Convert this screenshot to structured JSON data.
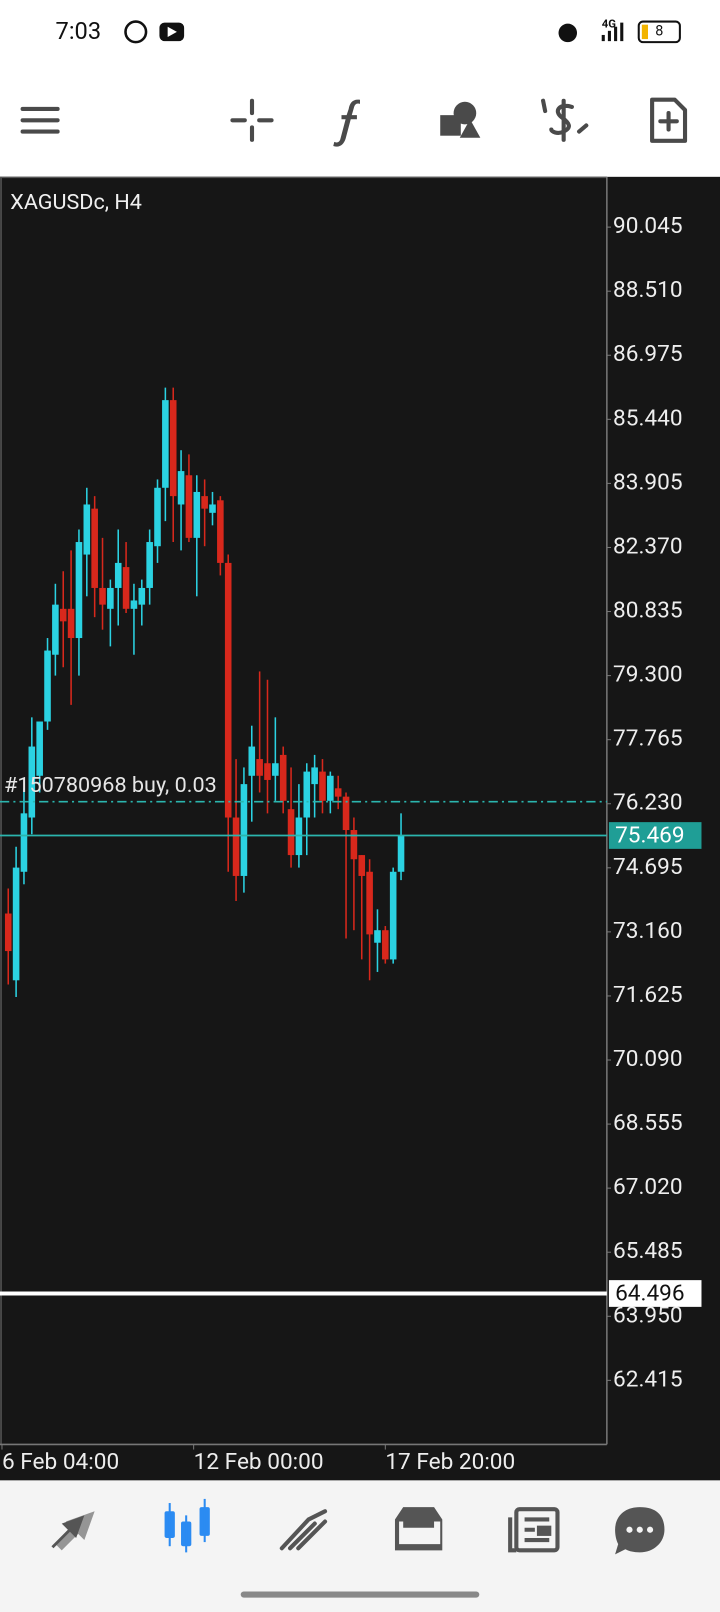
{
  "status_bar": {
    "time": "7:03",
    "network": "4G",
    "battery": "8"
  },
  "chart_data": {
    "type": "candlestick",
    "title": "XAGUSDc, H4",
    "up_color": "#2bd2e2",
    "down_color": "#d8281c",
    "ylim": [
      60.88,
      91.25
    ],
    "yticks": [
      90.045,
      {
        "value": 88.51,
        "label": "88.510"
      },
      86.975,
      {
        "value": 85.44,
        "label": "85.440"
      },
      83.905,
      {
        "value": 82.37,
        "label": "82.370"
      },
      80.835,
      {
        "value": 79.3,
        "label": "79.300"
      },
      77.765,
      {
        "value": 76.23,
        "label": "76.230"
      },
      74.695,
      {
        "value": 73.16,
        "label": "73.160"
      },
      71.625,
      {
        "value": 70.09,
        "label": "70.090"
      },
      68.555,
      {
        "value": 67.02,
        "label": "67.020"
      },
      65.485,
      {
        "value": 63.95,
        "label": "63.950"
      },
      62.415
    ],
    "xlim": [
      -1.05,
      76.2
    ],
    "xticks": [
      {
        "value": -0.8,
        "label": "6 Feb 04:00"
      },
      {
        "value": 23.6,
        "label": "12 Feb 00:00"
      },
      {
        "value": 48,
        "label": "17 Feb 20:00"
      }
    ],
    "open": [
      73.6,
      72.0,
      74.6,
      75.9,
      76.9,
      78.2,
      79.8,
      80.9,
      80.9,
      80.2,
      82.2,
      83.3,
      81.4,
      80.9,
      81.4,
      81.9,
      80.9,
      81.0,
      81.4,
      82.4,
      83.8,
      85.9,
      83.4,
      84.1,
      82.6,
      83.6,
      83.2,
      83.5,
      82.0,
      75.9,
      74.5,
      76.9,
      77.3,
      77.2,
      76.9,
      77.4,
      76.1,
      75.0,
      75.9,
      76.7,
      77.0,
      76.3,
      76.6,
      76.4,
      75.6,
      75.0,
      74.6,
      72.9,
      73.2,
      72.5,
      74.6
    ],
    "high": [
      74.2,
      75.2,
      76.6,
      78.3,
      78.2,
      80.2,
      81.5,
      81.8,
      82.3,
      82.8,
      83.8,
      83.6,
      82.6,
      81.6,
      82.8,
      82.5,
      81.5,
      81.6,
      82.8,
      84.0,
      86.2,
      86.2,
      84.7,
      84.6,
      84.1,
      84.0,
      83.7,
      83.6,
      82.2,
      77.3,
      77.1,
      78.1,
      79.4,
      79.2,
      78.3,
      77.6,
      77.1,
      76.7,
      77.2,
      77.4,
      77.3,
      77.0,
      76.9,
      76.5,
      75.9,
      75.0,
      74.9,
      73.7,
      73.3,
      74.7,
      76.0
    ],
    "low": [
      71.9,
      71.6,
      74.3,
      75.5,
      76.5,
      78.0,
      79.3,
      79.5,
      78.6,
      79.3,
      81.2,
      80.7,
      80.4,
      80.0,
      80.5,
      80.8,
      79.8,
      80.5,
      81.0,
      82.0,
      83.0,
      82.5,
      82.3,
      82.5,
      81.2,
      82.4,
      82.9,
      81.7,
      74.6,
      73.9,
      74.1,
      75.8,
      76.5,
      76.0,
      76.3,
      76.0,
      74.7,
      74.7,
      75.0,
      75.9,
      76.0,
      76.0,
      76.1,
      73.0,
      73.2,
      72.5,
      72.0,
      72.2,
      72.4,
      72.4,
      74.4
    ],
    "close": [
      72.7,
      74.7,
      76.0,
      77.6,
      78.2,
      79.9,
      81.0,
      80.6,
      80.2,
      82.5,
      83.4,
      81.4,
      81.0,
      81.4,
      82.0,
      80.9,
      81.1,
      81.4,
      82.5,
      83.8,
      85.9,
      83.6,
      84.2,
      82.6,
      83.7,
      83.3,
      83.4,
      82.0,
      75.9,
      74.5,
      76.7,
      77.6,
      76.9,
      76.8,
      77.2,
      76.3,
      75.0,
      75.9,
      77.0,
      77.1,
      76.3,
      76.9,
      76.4,
      75.6,
      74.9,
      74.5,
      73.1,
      73.2,
      72.5,
      74.6,
      75.469
    ],
    "levels": [
      {
        "name": "#150780968 buy, 0.03",
        "value": 76.28,
        "color": "#2bb5ae",
        "style": "dashdot"
      },
      {
        "value": 75.469,
        "color": "#2bb5ae",
        "style": "solid",
        "tag": true
      },
      {
        "value": 64.496,
        "color": "#ffffff",
        "style": "solid",
        "tag": true
      }
    ]
  }
}
